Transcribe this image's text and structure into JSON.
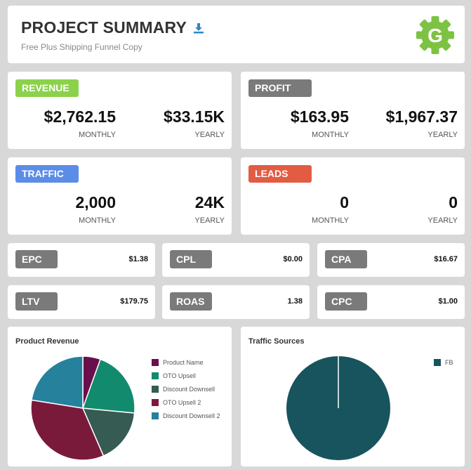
{
  "header": {
    "title": "PROJECT SUMMARY",
    "subtitle": "Free Plus Shipping Funnel Copy",
    "logo_letter": "G"
  },
  "metrics": {
    "revenue": {
      "label": "REVENUE",
      "color": "#8cd14b",
      "monthly": "$2,762.15",
      "yearly": "$33.15K",
      "monthly_label": "MONTHLY",
      "yearly_label": "YEARLY"
    },
    "profit": {
      "label": "PROFIT",
      "color": "#7a7a7a",
      "monthly": "$163.95",
      "yearly": "$1,967.37",
      "monthly_label": "MONTHLY",
      "yearly_label": "YEARLY"
    },
    "traffic": {
      "label": "TRAFFIC",
      "color": "#5b8de8",
      "monthly": "2,000",
      "yearly": "24K",
      "monthly_label": "MONTHLY",
      "yearly_label": "YEARLY"
    },
    "leads": {
      "label": "LEADS",
      "color": "#e25c44",
      "monthly": "0",
      "yearly": "0",
      "monthly_label": "MONTHLY",
      "yearly_label": "YEARLY"
    }
  },
  "small_metrics": [
    {
      "label": "EPC",
      "value": "$1.38"
    },
    {
      "label": "CPL",
      "value": "$0.00"
    },
    {
      "label": "CPA",
      "value": "$16.67"
    },
    {
      "label": "LTV",
      "value": "$179.75"
    },
    {
      "label": "ROAS",
      "value": "1.38"
    },
    {
      "label": "CPC",
      "value": "$1.00"
    }
  ],
  "chart_data": [
    {
      "type": "pie",
      "title": "Product Revenue",
      "legend_position": "right",
      "labels": [
        "Product Name",
        "OTO Upsell",
        "Discount Downsell",
        "OTO Upsell 2",
        "Discount Downsell 2"
      ],
      "values": [
        5.5,
        21,
        17,
        34,
        22.5
      ],
      "colors": [
        "#6a0f4b",
        "#118a6e",
        "#355b53",
        "#7a1a3a",
        "#25819c"
      ]
    },
    {
      "type": "pie",
      "title": "Traffic Sources",
      "legend_position": "top-right",
      "labels": [
        "FB"
      ],
      "values": [
        100
      ],
      "colors": [
        "#17545d"
      ]
    }
  ]
}
